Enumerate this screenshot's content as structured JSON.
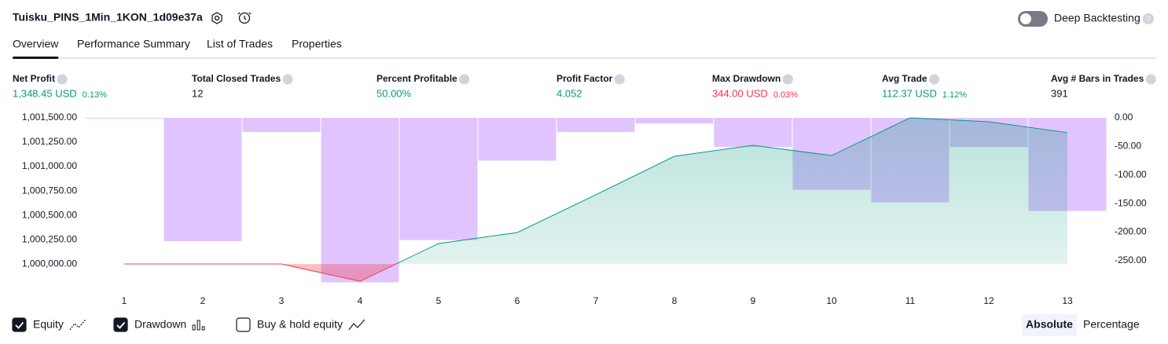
{
  "header": {
    "title": "Tuisku_PINS_1Min_1KON_1d09e37a",
    "deep_backtesting": "Deep Backtesting"
  },
  "tabs": [
    "Overview",
    "Performance Summary",
    "List of Trades",
    "Properties"
  ],
  "metrics": [
    {
      "label": "Net Profit",
      "value": "1,348.45 USD",
      "percent": "0.13%",
      "color": "#089981"
    },
    {
      "label": "Total Closed Trades",
      "value": "12",
      "color": "#131722"
    },
    {
      "label": "Percent Profitable",
      "value": "50.00%",
      "color": "#089981"
    },
    {
      "label": "Profit Factor",
      "value": "4.052",
      "color": "#089981"
    },
    {
      "label": "Max Drawdown",
      "value": "344.00 USD",
      "percent": "0.03%",
      "color": "#f23645"
    },
    {
      "label": "Avg Trade",
      "value": "112.37 USD",
      "percent": "1.12%",
      "color": "#089981"
    },
    {
      "label": "Avg # Bars in Trades",
      "value": "391",
      "color": "#131722"
    }
  ],
  "chart_data": {
    "type": "line",
    "x": [
      1,
      2,
      3,
      4,
      5,
      6,
      7,
      8,
      9,
      10,
      11,
      12,
      13
    ],
    "xlim": [
      0.5,
      13.5
    ],
    "ylim": [
      999800,
      1001500
    ],
    "yticks": [
      {
        "value": 1000000,
        "label": "1,000,000.00"
      },
      {
        "value": 1000250,
        "label": "1,000,250.00"
      },
      {
        "value": 1000500,
        "label": "1,000,500.00"
      },
      {
        "value": 1000750,
        "label": "1,000,750.00"
      },
      {
        "value": 1001000,
        "label": "1,001,000.00"
      },
      {
        "value": 1001250,
        "label": "1,001,250.00"
      },
      {
        "value": 1001500,
        "label": "1,001,500.00"
      }
    ],
    "y2lim": [
      -290,
      0
    ],
    "y2ticks": [
      {
        "value": 0,
        "label": "0.00"
      },
      {
        "value": -50,
        "label": "-50.00"
      },
      {
        "value": -100,
        "label": "-100.00"
      },
      {
        "value": -150,
        "label": "-150.00"
      },
      {
        "value": -200,
        "label": "-200.00"
      },
      {
        "value": -250,
        "label": "-250.00"
      }
    ],
    "grid": false,
    "series": [
      {
        "name": "Equity",
        "type": "line",
        "color": "#089981",
        "values": [
          1000000,
          1000000,
          1000000,
          999823,
          1000210,
          1000323,
          1000710,
          1001105,
          1001218,
          1001113,
          1001500,
          1001460,
          1001348.45
        ]
      },
      {
        "name": "Drawdown",
        "type": "bar",
        "axis": "y2",
        "color": "#e1c4fe",
        "values": [
          0,
          -216,
          -25,
          -288,
          -214,
          -75,
          -25,
          -10,
          -51,
          -126,
          -148,
          -51,
          -163
        ]
      }
    ],
    "buy_hold_label": "Buy & hold equity",
    "legend_checked": [
      true,
      true,
      false
    ]
  },
  "view_modes": [
    "Absolute",
    "Percentage"
  ]
}
